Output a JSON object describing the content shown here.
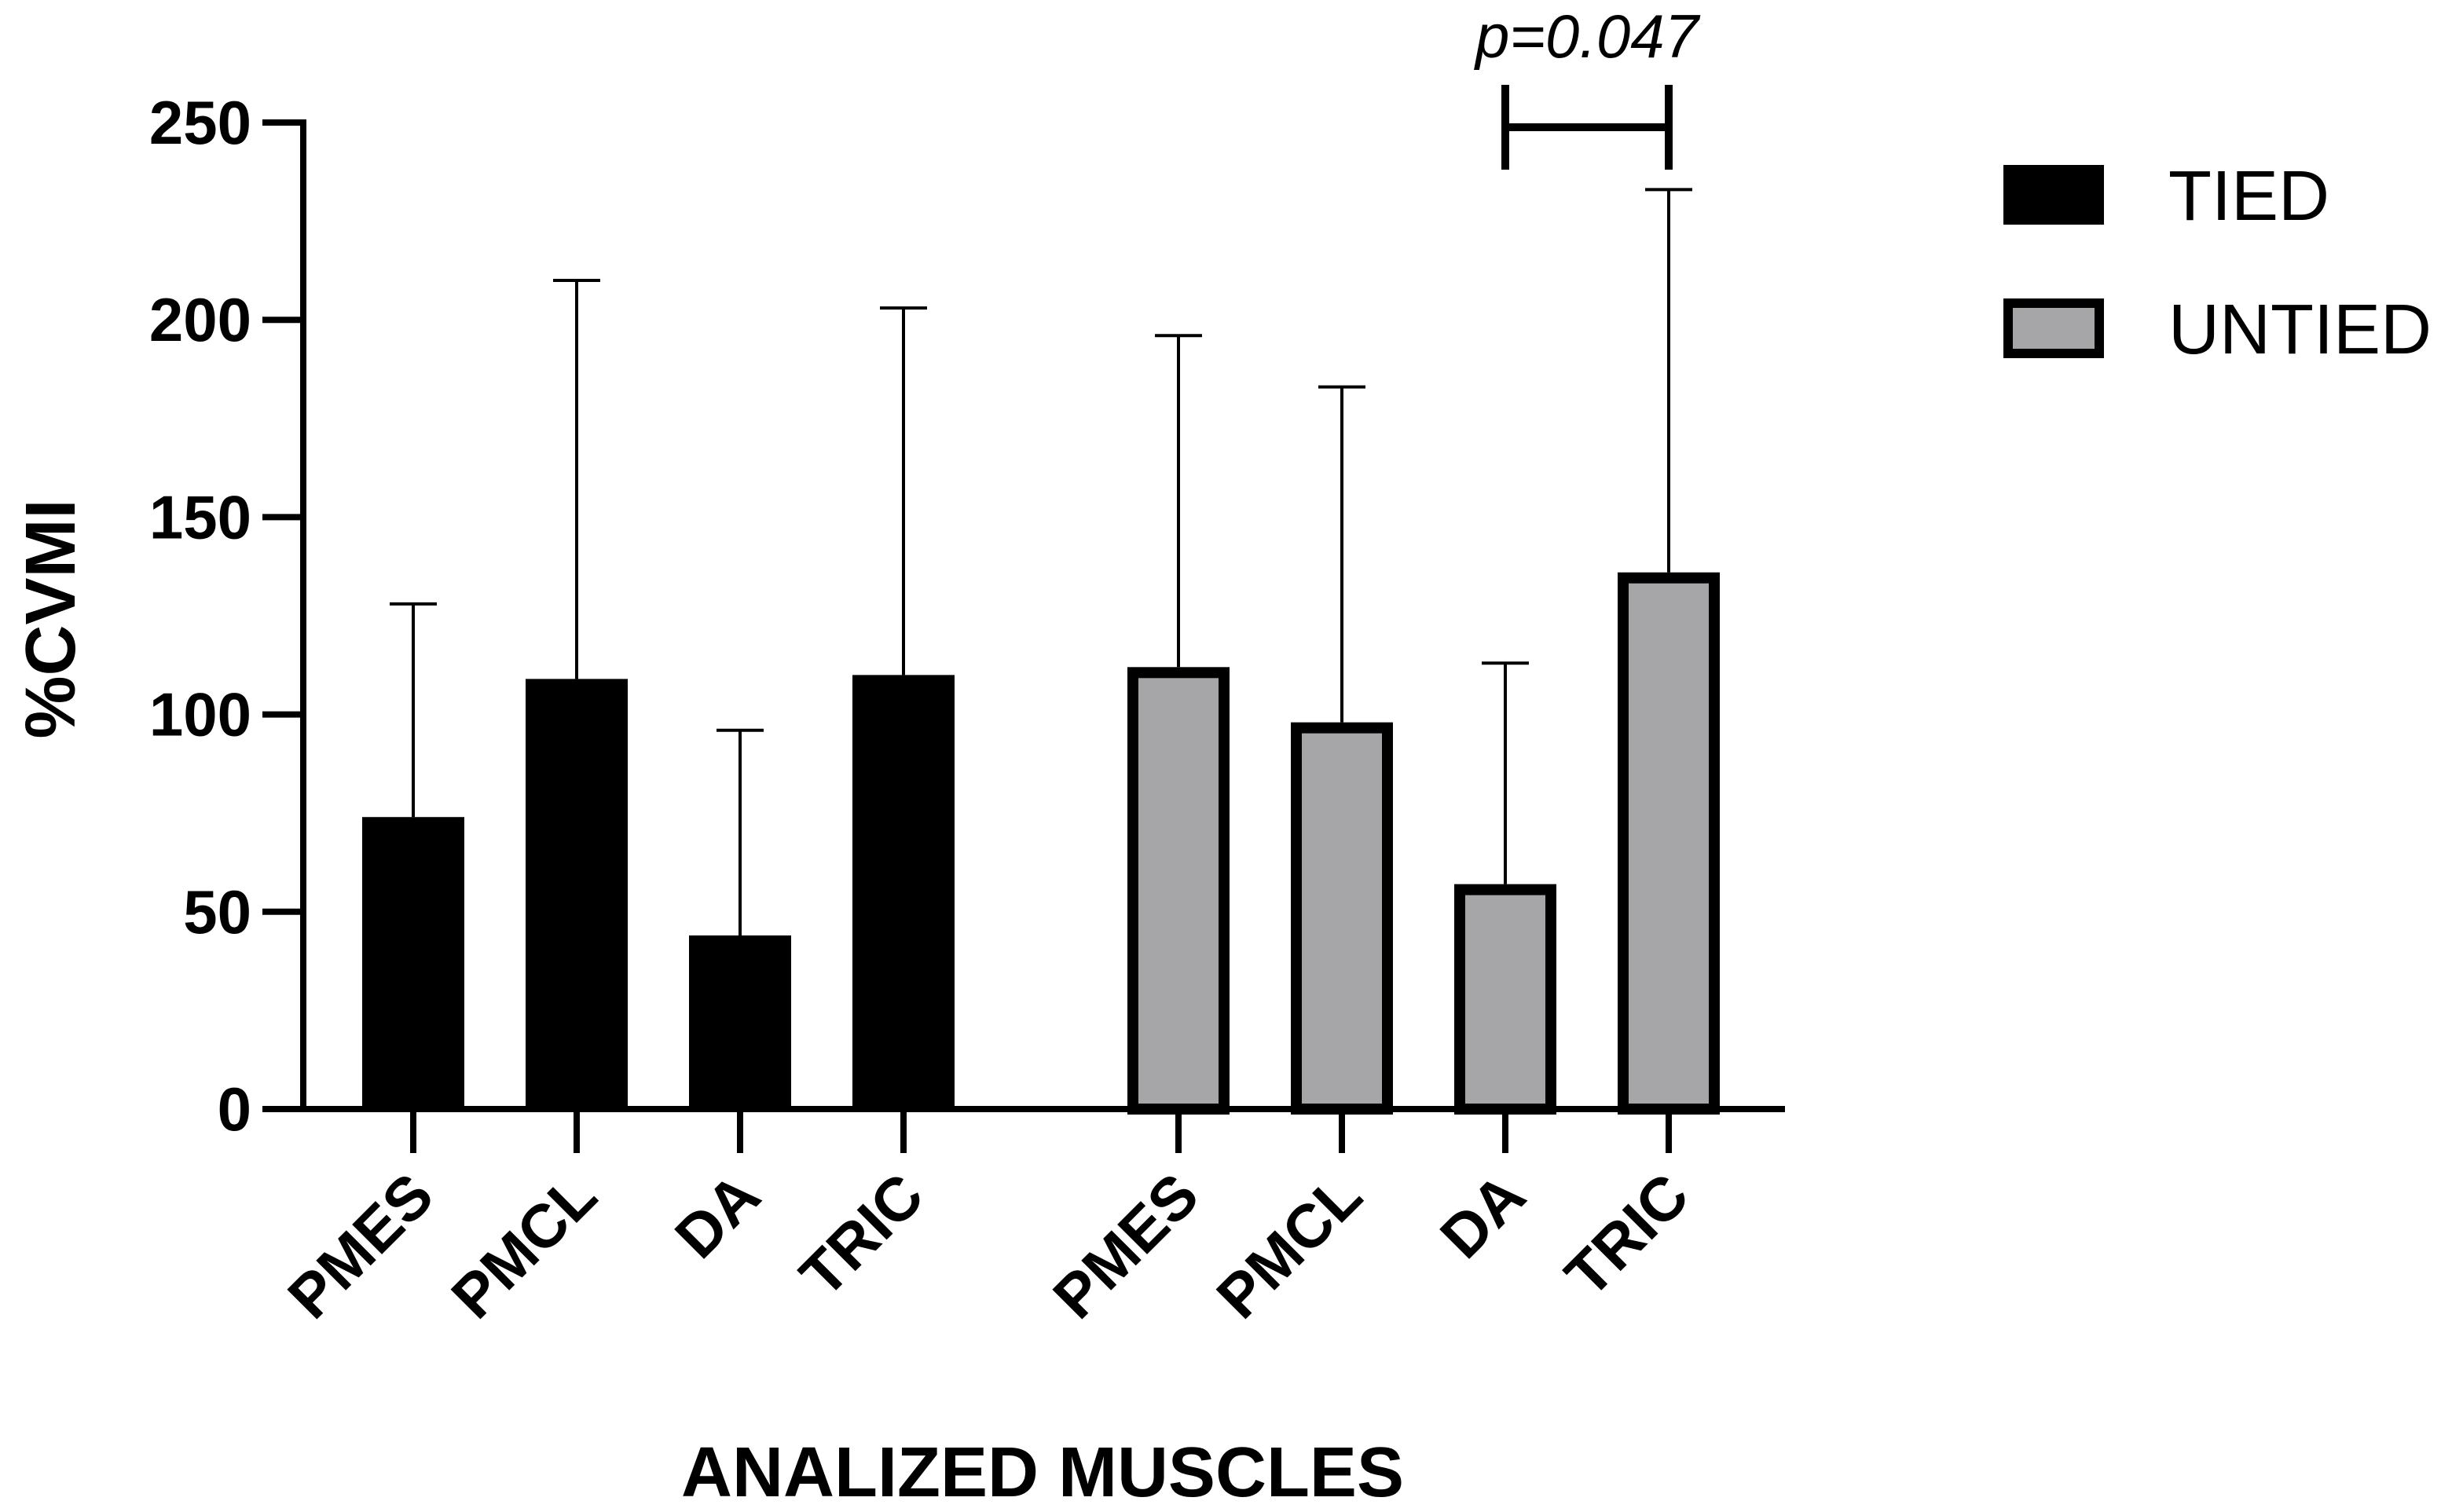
{
  "chart_data": {
    "type": "bar",
    "title": "",
    "xlabel": "ANALIZED MUSCLES",
    "ylabel": "%CVMI",
    "ylim": [
      0,
      250
    ],
    "yticks": [
      0,
      50,
      100,
      150,
      200,
      250
    ],
    "ytick_labels": [
      "0",
      "50",
      "100",
      "150",
      "200",
      "250"
    ],
    "legend_position": "top-right",
    "colors": {
      "tied_fill": "#000000",
      "untied_fill": "#a6a6a8",
      "edge": "#000000"
    },
    "series": [
      {
        "name": "TIED",
        "categories": [
          "PMES",
          "PMCL",
          "DA",
          "TRIC"
        ],
        "values": [
          74,
          109,
          44,
          110
        ],
        "error_upper": [
          128,
          210,
          96,
          203
        ]
      },
      {
        "name": "UNTIED",
        "categories": [
          "PMES",
          "PMCL",
          "DA",
          "TRIC"
        ],
        "values": [
          112,
          98,
          57,
          136
        ],
        "error_upper": [
          196,
          183,
          113,
          233
        ]
      }
    ],
    "annotation": {
      "text": "p=0.047",
      "between": [
        "UNTIED DA",
        "UNTIED TRIC"
      ],
      "level": 250
    }
  }
}
